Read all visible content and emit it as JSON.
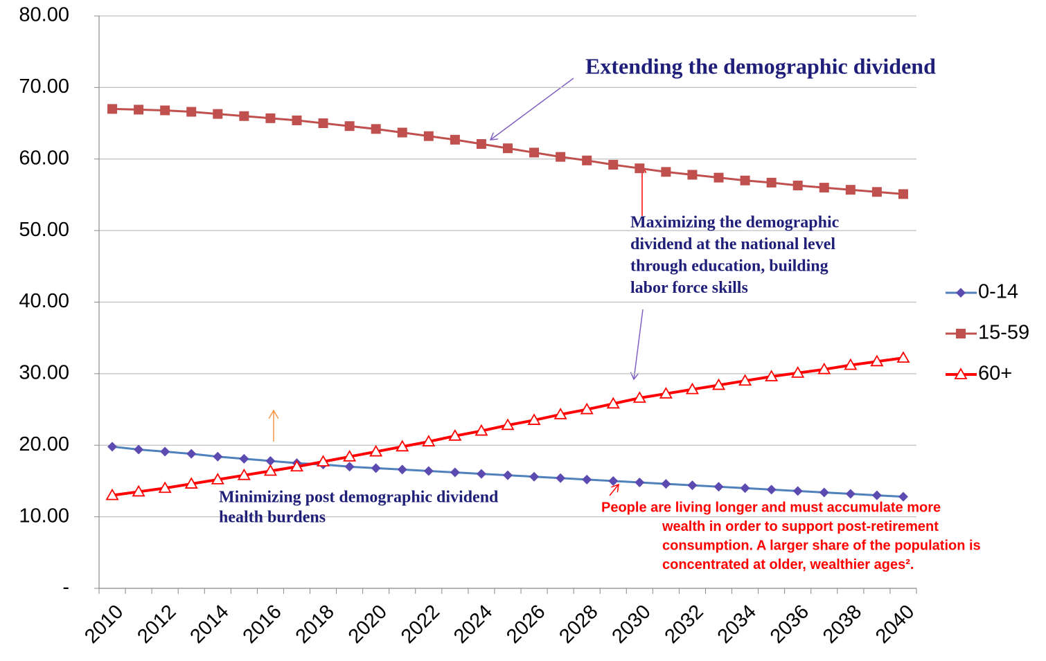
{
  "chart_data": {
    "type": "line",
    "categories": [
      "2010",
      null,
      "2012",
      null,
      "2014",
      null,
      "2016",
      null,
      "2018",
      null,
      "2020",
      null,
      "2022",
      null,
      "2024",
      null,
      "2026",
      null,
      "2028",
      null,
      "2030",
      null,
      "2032",
      null,
      "2034",
      null,
      "2036",
      null,
      "2038",
      null,
      "2040"
    ],
    "series": [
      {
        "name": "0-14",
        "color": "#4f81bd",
        "marker_color": "#5b4bb0",
        "marker": "diamond",
        "values": [
          19.8,
          19.4,
          19.1,
          18.8,
          18.4,
          18.1,
          17.8,
          17.5,
          17.3,
          17.0,
          16.8,
          16.6,
          16.4,
          16.2,
          16.0,
          15.8,
          15.6,
          15.4,
          15.2,
          15.0,
          14.8,
          14.6,
          14.4,
          14.2,
          14.0,
          13.8,
          13.6,
          13.4,
          13.2,
          13.0,
          12.8
        ]
      },
      {
        "name": "15-59",
        "color": "#c0504d",
        "marker_color": "#c0504d",
        "marker": "square",
        "values": [
          67.0,
          66.9,
          66.8,
          66.6,
          66.3,
          66.0,
          65.7,
          65.4,
          65.0,
          64.6,
          64.2,
          63.7,
          63.2,
          62.7,
          62.1,
          61.5,
          60.9,
          60.3,
          59.8,
          59.2,
          58.7,
          58.2,
          57.8,
          57.4,
          57.0,
          56.7,
          56.3,
          56.0,
          55.7,
          55.4,
          55.1
        ]
      },
      {
        "name": "60+",
        "color": "#ff0000",
        "marker_color": "#ff0000",
        "marker": "triangle",
        "values": [
          13.0,
          13.5,
          14.0,
          14.6,
          15.2,
          15.8,
          16.4,
          17.0,
          17.7,
          18.4,
          19.1,
          19.8,
          20.5,
          21.3,
          22.0,
          22.8,
          23.5,
          24.3,
          25.0,
          25.8,
          26.6,
          27.2,
          27.8,
          28.4,
          29.0,
          29.6,
          30.1,
          30.6,
          31.2,
          31.7,
          32.2
        ]
      }
    ],
    "ylim": [
      0,
      80
    ],
    "yticks": [
      {
        "value": 0,
        "label": "-"
      },
      {
        "value": 10,
        "label": "10.00"
      },
      {
        "value": 20,
        "label": "20.00"
      },
      {
        "value": 30,
        "label": "30.00"
      },
      {
        "value": 40,
        "label": "40.00"
      },
      {
        "value": 50,
        "label": "50.00"
      },
      {
        "value": 60,
        "label": "60.00"
      },
      {
        "value": 70,
        "label": "70.00"
      },
      {
        "value": 80,
        "label": "80.00"
      }
    ],
    "grid": true,
    "legend": "right",
    "annotations": [
      {
        "lines": [
          "Extending the demographic dividend"
        ]
      },
      {
        "lines": [
          "Maximizing the demographic",
          "dividend at the national level",
          "through education, building",
          "labor force skills"
        ]
      },
      {
        "lines": [
          "Minimizing post demographic dividend",
          "health burdens"
        ]
      },
      {
        "lines": [
          "People are living longer and must accumulate more",
          "wealth in order to support post-retirement",
          "consumption. A larger share of the population is",
          "concentrated at older, wealthier ages²."
        ]
      }
    ]
  }
}
